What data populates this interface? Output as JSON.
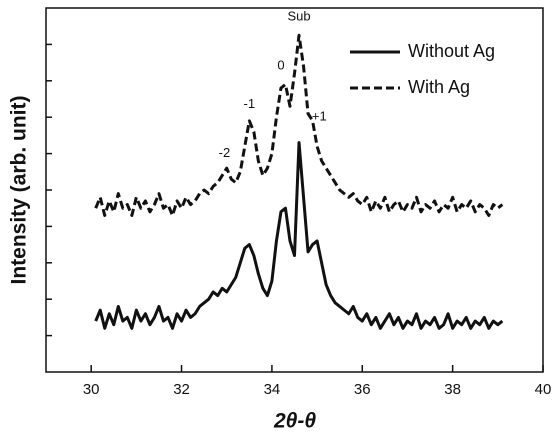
{
  "chart_data": {
    "type": "line",
    "xlabel": "2θ-θ",
    "ylabel": "Intensity (arb. unit)",
    "x": [
      30.1,
      30.2,
      30.3,
      30.4,
      30.5,
      30.6,
      30.7,
      30.8,
      30.9,
      31.0,
      31.1,
      31.2,
      31.3,
      31.4,
      31.5,
      31.6,
      31.7,
      31.8,
      31.9,
      32.0,
      32.1,
      32.2,
      32.3,
      32.4,
      32.5,
      32.6,
      32.7,
      32.8,
      32.9,
      33.0,
      33.1,
      33.2,
      33.3,
      33.4,
      33.5,
      33.6,
      33.7,
      33.8,
      33.9,
      34.0,
      34.1,
      34.2,
      34.3,
      34.4,
      34.5,
      34.6,
      34.7,
      34.8,
      34.9,
      35.0,
      35.1,
      35.2,
      35.3,
      35.4,
      35.5,
      35.6,
      35.7,
      35.8,
      35.9,
      36.0,
      36.1,
      36.2,
      36.3,
      36.4,
      36.5,
      36.6,
      36.7,
      36.8,
      36.9,
      37.0,
      37.1,
      37.2,
      37.3,
      37.4,
      37.5,
      37.6,
      37.7,
      37.8,
      37.9,
      38.0,
      38.1,
      38.2,
      38.3,
      38.4,
      38.5,
      38.6,
      38.7,
      38.8,
      38.9,
      39.0,
      39.1
    ],
    "series": [
      {
        "name": "Without Ag",
        "color": "#111111",
        "style": "solid",
        "values": [
          1.4,
          1.7,
          1.2,
          1.6,
          1.3,
          1.8,
          1.4,
          1.5,
          1.2,
          1.7,
          1.4,
          1.6,
          1.3,
          1.5,
          1.8,
          1.4,
          1.5,
          1.2,
          1.6,
          1.4,
          1.7,
          1.5,
          1.6,
          1.8,
          1.9,
          2.0,
          2.2,
          2.1,
          2.3,
          2.2,
          2.4,
          2.6,
          3.0,
          3.4,
          3.5,
          3.2,
          2.7,
          2.3,
          2.1,
          2.5,
          3.6,
          4.4,
          4.5,
          3.6,
          3.2,
          6.3,
          4.8,
          3.3,
          3.5,
          3.6,
          3.0,
          2.4,
          2.1,
          1.9,
          1.8,
          1.7,
          1.6,
          1.8,
          1.5,
          1.4,
          1.6,
          1.3,
          1.5,
          1.2,
          1.4,
          1.6,
          1.3,
          1.5,
          1.2,
          1.4,
          1.3,
          1.6,
          1.2,
          1.4,
          1.3,
          1.5,
          1.2,
          1.3,
          1.6,
          1.2,
          1.4,
          1.3,
          1.5,
          1.2,
          1.4,
          1.3,
          1.5,
          1.2,
          1.4,
          1.3,
          1.4
        ]
      },
      {
        "name": "With Ag",
        "color": "#111111",
        "style": "dashed",
        "values": [
          4.5,
          4.8,
          4.3,
          4.7,
          4.4,
          4.9,
          4.5,
          4.6,
          4.3,
          4.8,
          4.5,
          4.7,
          4.4,
          4.6,
          4.9,
          4.5,
          4.6,
          4.3,
          4.7,
          4.5,
          4.8,
          4.6,
          4.7,
          4.9,
          5.0,
          4.9,
          5.1,
          5.2,
          5.4,
          5.6,
          5.3,
          5.2,
          5.5,
          6.2,
          6.9,
          6.6,
          5.8,
          5.4,
          5.6,
          6.0,
          7.0,
          7.8,
          7.9,
          7.3,
          8.2,
          9.25,
          8.4,
          7.1,
          6.9,
          6.2,
          5.8,
          5.6,
          5.4,
          5.2,
          5.0,
          4.9,
          4.8,
          4.9,
          4.7,
          4.6,
          4.8,
          4.4,
          4.7,
          4.5,
          4.8,
          4.4,
          4.6,
          4.7,
          4.4,
          4.6,
          4.5,
          4.8,
          4.4,
          4.6,
          4.5,
          4.7,
          4.4,
          4.6,
          4.5,
          4.8,
          4.4,
          4.6,
          4.5,
          4.7,
          4.4,
          4.6,
          4.5,
          4.3,
          4.6,
          4.5,
          4.6
        ]
      }
    ],
    "annotations": [
      {
        "text": "-2",
        "x": 32.95,
        "y": 6.0
      },
      {
        "text": "-1",
        "x": 33.5,
        "y": 7.35
      },
      {
        "text": "0",
        "x": 34.2,
        "y": 8.4
      },
      {
        "text": "Sub",
        "x": 34.6,
        "y": 9.75
      },
      {
        "text": "+1",
        "x": 35.05,
        "y": 7.0
      }
    ],
    "xlim": [
      29,
      40
    ],
    "xticks": [
      30,
      32,
      34,
      36,
      38,
      40
    ],
    "ylim": [
      0,
      10
    ],
    "yticks": [
      1,
      2,
      3,
      4,
      5,
      6,
      7,
      8,
      9
    ],
    "legend": "upper right"
  }
}
